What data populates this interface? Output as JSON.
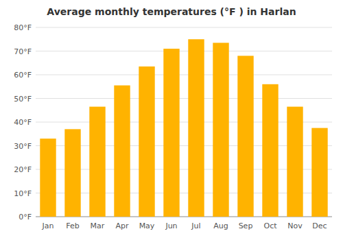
{
  "chart_data": {
    "type": "bar",
    "title": "Average monthly temperatures (°F ) in Harlan",
    "categories": [
      "Jan",
      "Feb",
      "Mar",
      "Apr",
      "May",
      "Jun",
      "Jul",
      "Aug",
      "Sep",
      "Oct",
      "Nov",
      "Dec"
    ],
    "values": [
      33,
      37,
      46.5,
      55.5,
      63.5,
      71,
      75,
      73.5,
      68,
      56,
      46.5,
      37.5
    ],
    "color": "#FFB300",
    "ylim": [
      0,
      80
    ],
    "yticks": [
      {
        "value": 0,
        "label": "0°F"
      },
      {
        "value": 10,
        "label": "10°F"
      },
      {
        "value": 20,
        "label": "20°F"
      },
      {
        "value": 30,
        "label": "30°F"
      },
      {
        "value": 40,
        "label": "40°F"
      },
      {
        "value": 50,
        "label": "50°F"
      },
      {
        "value": 60,
        "label": "60°F"
      },
      {
        "value": 70,
        "label": "70°F"
      },
      {
        "value": 80,
        "label": "80°F"
      }
    ],
    "grid": true
  }
}
